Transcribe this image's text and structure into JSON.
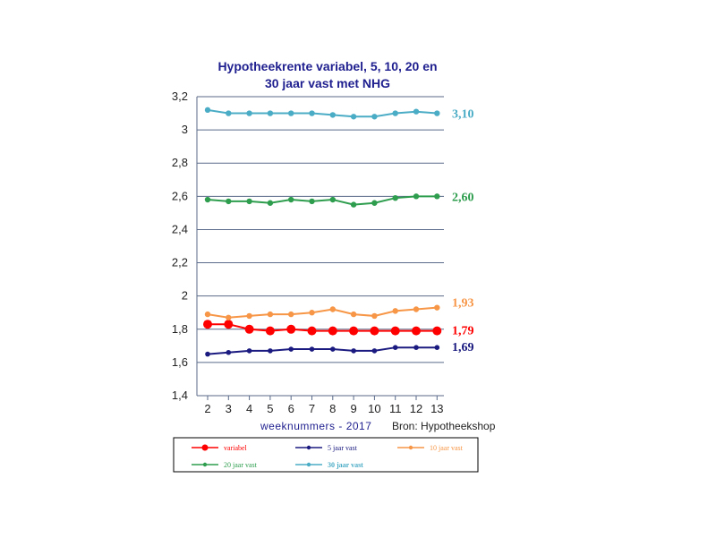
{
  "chart_data": {
    "type": "line",
    "title_lines": [
      "Hypotheekrente variabel, 5, 10, 20 en",
      "30 jaar vast met NHG"
    ],
    "xlabel": "weeknummers - 2017",
    "source": "Bron: Hypotheekshop",
    "x": [
      "2",
      "3",
      "4",
      "5",
      "6",
      "7",
      "8",
      "9",
      "10",
      "11",
      "12",
      "13"
    ],
    "ylim": [
      1.4,
      3.2
    ],
    "yticks": [
      "1,4",
      "1,6",
      "1,8",
      "2",
      "2,2",
      "2,4",
      "2,6",
      "2,8",
      "3",
      "3,2"
    ],
    "grid": true,
    "legend_position": "bottom",
    "series": [
      {
        "name": "variabel",
        "color": "#ff0000",
        "marker": "large",
        "values": [
          1.83,
          1.83,
          1.8,
          1.79,
          1.8,
          1.79,
          1.79,
          1.79,
          1.79,
          1.79,
          1.79,
          1.79
        ],
        "end_label": "1,79"
      },
      {
        "name": "5 jaar vast",
        "color": "#1a1a80",
        "marker": "small",
        "values": [
          1.65,
          1.66,
          1.67,
          1.67,
          1.68,
          1.68,
          1.68,
          1.67,
          1.67,
          1.69,
          1.69,
          1.69
        ],
        "end_label": "1,69"
      },
      {
        "name": "10 jaar vast",
        "color": "#f79646",
        "marker": "medium",
        "values": [
          1.89,
          1.87,
          1.88,
          1.89,
          1.89,
          1.9,
          1.92,
          1.89,
          1.88,
          1.91,
          1.92,
          1.93
        ],
        "end_label": "1,93"
      },
      {
        "name": "20 jaar vast",
        "color": "#2e9e4e",
        "marker": "medium",
        "values": [
          2.58,
          2.57,
          2.57,
          2.56,
          2.58,
          2.57,
          2.58,
          2.55,
          2.56,
          2.59,
          2.6,
          2.6
        ],
        "end_label": "2,60"
      },
      {
        "name": "30 jaar vast",
        "color": "#4bacc6",
        "marker": "medium",
        "values": [
          3.12,
          3.1,
          3.1,
          3.1,
          3.1,
          3.1,
          3.09,
          3.08,
          3.08,
          3.1,
          3.11,
          3.1
        ],
        "end_label": "3,10"
      }
    ]
  }
}
